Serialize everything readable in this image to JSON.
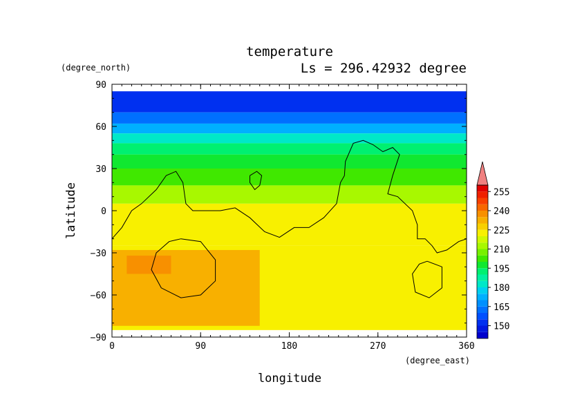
{
  "chart_data": {
    "type": "heatmap",
    "title": "temperature",
    "subtitle": "Ls = 296.42932 degree",
    "xlabel": "longitude",
    "ylabel": "latitude",
    "xunit": "(degree_east)",
    "yunit": "(degree_north)",
    "xlim": [
      0,
      360
    ],
    "ylim": [
      -90,
      90
    ],
    "xticks": [
      "0",
      "90",
      "180",
      "270",
      "360"
    ],
    "yticks": [
      "90",
      "60",
      "30",
      "0",
      "−30",
      "−60",
      "−90"
    ],
    "colorbar": {
      "levels": [
        150,
        165,
        180,
        195,
        210,
        225,
        240,
        255
      ],
      "labels": [
        "150",
        "165",
        "180",
        "195",
        "210",
        "225",
        "240",
        "255"
      ],
      "bins": [
        {
          "lo": 140,
          "hi": 145,
          "color": "#0000cc"
        },
        {
          "lo": 145,
          "hi": 150,
          "color": "#0018e0"
        },
        {
          "lo": 150,
          "hi": 155,
          "color": "#0030f0"
        },
        {
          "lo": 155,
          "hi": 160,
          "color": "#0050ff"
        },
        {
          "lo": 160,
          "hi": 165,
          "color": "#0070ff"
        },
        {
          "lo": 165,
          "hi": 170,
          "color": "#0090ff"
        },
        {
          "lo": 170,
          "hi": 175,
          "color": "#00b0ff"
        },
        {
          "lo": 175,
          "hi": 180,
          "color": "#00d0f0"
        },
        {
          "lo": 180,
          "hi": 185,
          "color": "#00e8c8"
        },
        {
          "lo": 185,
          "hi": 190,
          "color": "#00f0a0"
        },
        {
          "lo": 190,
          "hi": 195,
          "color": "#00f070"
        },
        {
          "lo": 195,
          "hi": 200,
          "color": "#10e830"
        },
        {
          "lo": 200,
          "hi": 205,
          "color": "#40e800"
        },
        {
          "lo": 205,
          "hi": 210,
          "color": "#78f000"
        },
        {
          "lo": 210,
          "hi": 215,
          "color": "#a8f800"
        },
        {
          "lo": 215,
          "hi": 220,
          "color": "#d0f800"
        },
        {
          "lo": 220,
          "hi": 225,
          "color": "#f8f000"
        },
        {
          "lo": 225,
          "hi": 230,
          "color": "#f8d000"
        },
        {
          "lo": 230,
          "hi": 235,
          "color": "#f8b000"
        },
        {
          "lo": 235,
          "hi": 240,
          "color": "#f89000"
        },
        {
          "lo": 240,
          "hi": 245,
          "color": "#f86800"
        },
        {
          "lo": 245,
          "hi": 250,
          "color": "#f84000"
        },
        {
          "lo": 250,
          "hi": 255,
          "color": "#f02000"
        },
        {
          "lo": 255,
          "hi": 260,
          "color": "#e00000"
        }
      ],
      "over_color": "#f08080"
    },
    "regions": [
      {
        "lat_max": 85,
        "lat_min": 70,
        "color": "#0030f0",
        "temp": 150
      },
      {
        "lat_max": 70,
        "lat_min": 62,
        "color": "#0070ff",
        "temp": 162
      },
      {
        "lat_max": 62,
        "lat_min": 55,
        "color": "#00b0ff",
        "temp": 172
      },
      {
        "lat_max": 55,
        "lat_min": 48,
        "color": "#00e8c8",
        "temp": 182
      },
      {
        "lat_max": 48,
        "lat_min": 40,
        "color": "#00f070",
        "temp": 192
      },
      {
        "lat_max": 40,
        "lat_min": 30,
        "color": "#10e830",
        "temp": 197
      },
      {
        "lat_max": 30,
        "lat_min": 18,
        "color": "#40e800",
        "temp": 203
      },
      {
        "lat_max": 18,
        "lat_min": 5,
        "color": "#a8f800",
        "temp": 212
      },
      {
        "lat_max": 5,
        "lat_min": -25,
        "color": "#f8f000",
        "temp": 222
      },
      {
        "lat_max": -25,
        "lat_min": -85,
        "color": "#f8f000",
        "temp": 222
      }
    ],
    "warm_patch": {
      "lon": [
        0,
        150
      ],
      "lat": [
        -28,
        -82
      ],
      "color": "#f8b000",
      "temp": 232
    },
    "warm_core": {
      "lon": [
        15,
        60
      ],
      "lat": [
        -32,
        -45
      ],
      "color": "#f89000",
      "temp": 237
    },
    "contour_lines": [
      [
        [
          0,
          -20
        ],
        [
          10,
          -12
        ],
        [
          20,
          0
        ],
        [
          30,
          5
        ],
        [
          45,
          15
        ],
        [
          55,
          25
        ],
        [
          65,
          28
        ],
        [
          72,
          20
        ],
        [
          75,
          5
        ],
        [
          82,
          0
        ],
        [
          95,
          0
        ],
        [
          110,
          0
        ],
        [
          125,
          2
        ],
        [
          140,
          -5
        ],
        [
          155,
          -15
        ],
        [
          170,
          -19
        ],
        [
          185,
          -12
        ],
        [
          200,
          -12
        ],
        [
          215,
          -5
        ],
        [
          228,
          5
        ],
        [
          232,
          20
        ],
        [
          236,
          25
        ],
        [
          237,
          35
        ],
        [
          245,
          48
        ],
        [
          255,
          50
        ],
        [
          265,
          47
        ],
        [
          275,
          42
        ],
        [
          285,
          45
        ],
        [
          292,
          40
        ],
        [
          285,
          25
        ],
        [
          280,
          12
        ],
        [
          290,
          10
        ],
        [
          305,
          0
        ],
        [
          310,
          -10
        ],
        [
          310,
          -20
        ],
        [
          318,
          -20
        ],
        [
          325,
          -25
        ],
        [
          330,
          -30
        ],
        [
          340,
          -28
        ],
        [
          352,
          -22
        ],
        [
          360,
          -20
        ]
      ],
      [
        [
          140,
          25
        ],
        [
          147,
          28
        ],
        [
          152,
          25
        ],
        [
          150,
          18
        ],
        [
          145,
          15
        ],
        [
          140,
          20
        ],
        [
          140,
          25
        ]
      ],
      [
        [
          70,
          -20
        ],
        [
          90,
          -22
        ],
        [
          105,
          -35
        ],
        [
          105,
          -50
        ],
        [
          90,
          -60
        ],
        [
          70,
          -62
        ],
        [
          50,
          -55
        ],
        [
          40,
          -42
        ],
        [
          45,
          -30
        ],
        [
          58,
          -22
        ],
        [
          70,
          -20
        ]
      ],
      [
        [
          320,
          -36
        ],
        [
          335,
          -40
        ],
        [
          335,
          -55
        ],
        [
          322,
          -62
        ],
        [
          308,
          -58
        ],
        [
          305,
          -45
        ],
        [
          312,
          -38
        ],
        [
          320,
          -36
        ]
      ]
    ]
  }
}
